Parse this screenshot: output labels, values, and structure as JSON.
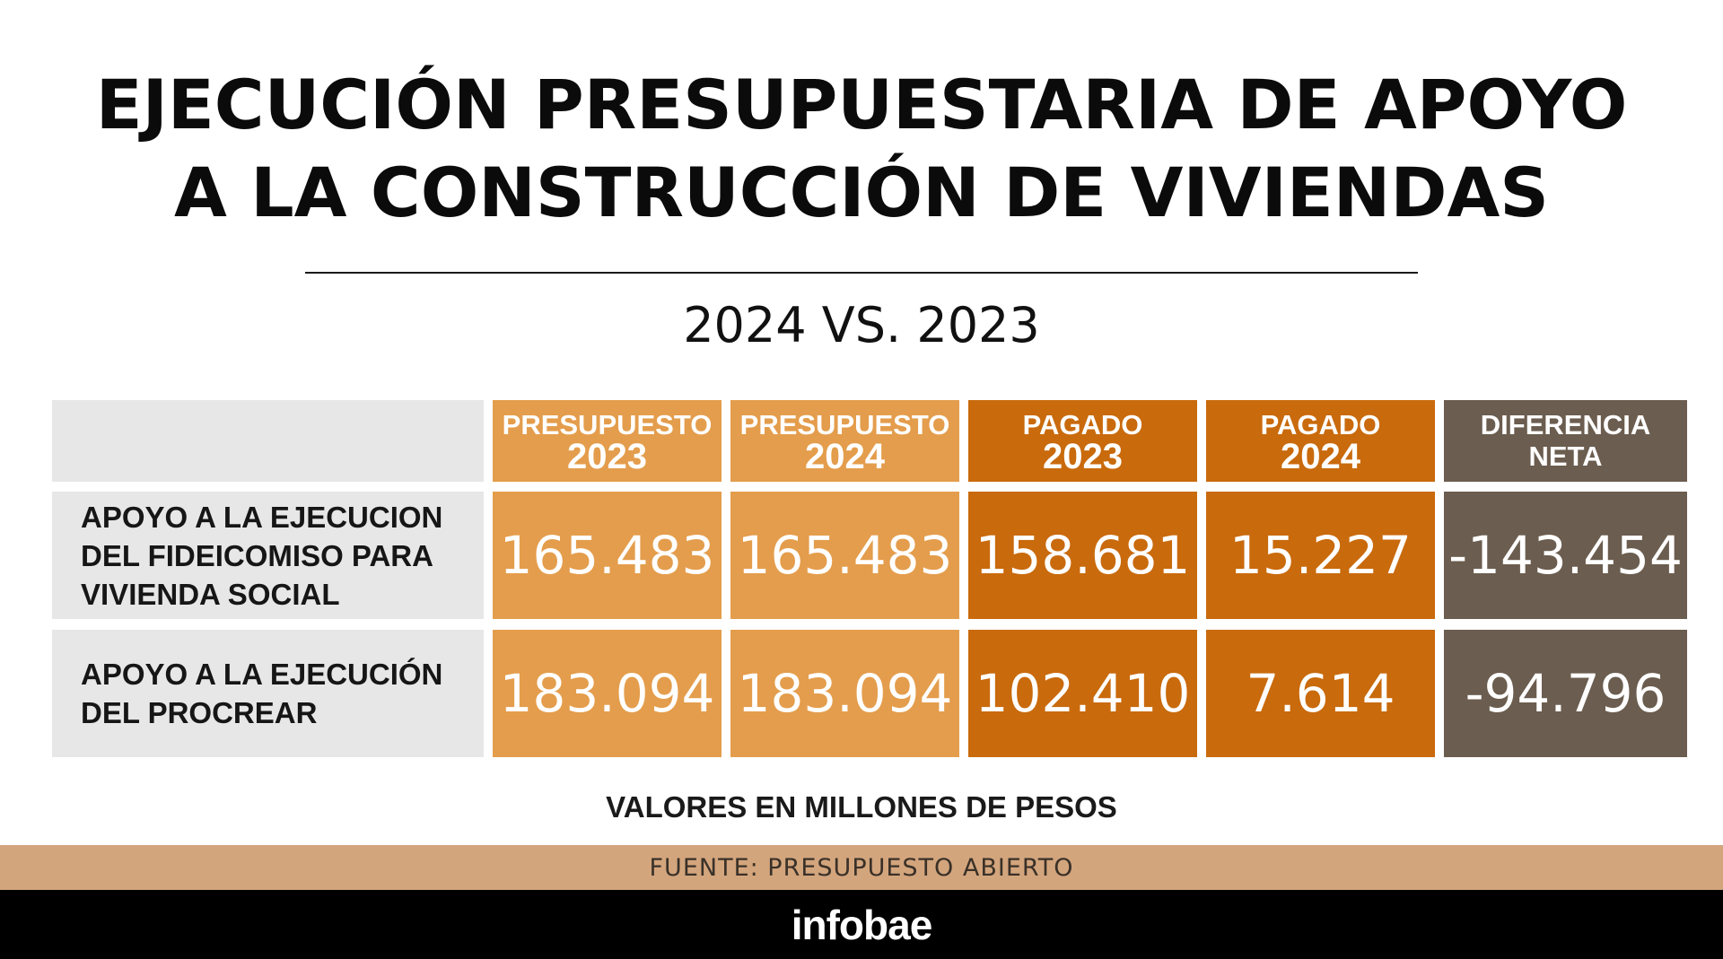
{
  "title": {
    "line1": "EJECUCIÓN PRESUPUESTARIA DE APOYO",
    "line2": "A LA CONSTRUCCIÓN DE VIVIENDAS"
  },
  "subtitle": "2024 VS. 2023",
  "table": {
    "headers": [
      {
        "line1": "PRESUPUESTO",
        "line2": "2023"
      },
      {
        "line1": "PRESUPUESTO",
        "line2": "2024"
      },
      {
        "line1": "PAGADO",
        "line2": "2023"
      },
      {
        "line1": "PAGADO",
        "line2": "2024"
      },
      {
        "line1": "DIFERENCIA",
        "line2": "NETA"
      }
    ],
    "rows": [
      {
        "label_lines": [
          "APOYO A LA EJECUCION",
          "DEL FIDEICOMISO PARA",
          "VIVIENDA SOCIAL"
        ],
        "values": [
          "165.483",
          "165.483",
          "158.681",
          "15.227",
          "-143.454"
        ]
      },
      {
        "label_lines": [
          "APOYO A LA EJECUCIÓN",
          "DEL PROCREAR"
        ],
        "values": [
          "183.094",
          "183.094",
          "102.410",
          "7.614",
          "-94.796"
        ]
      }
    ]
  },
  "note": "VALORES EN MILLONES DE PESOS",
  "source": "FUENTE:  PRESUPUESTO ABIERTO",
  "brand": "infobae",
  "colors": {
    "presupuesto": "#e49d4c",
    "pagado": "#c96a0c",
    "diferencia": "#6b5d4f",
    "label_bg": "#e7e7e7",
    "source_bar": "#d3a57d",
    "brand_bar": "#000000"
  }
}
